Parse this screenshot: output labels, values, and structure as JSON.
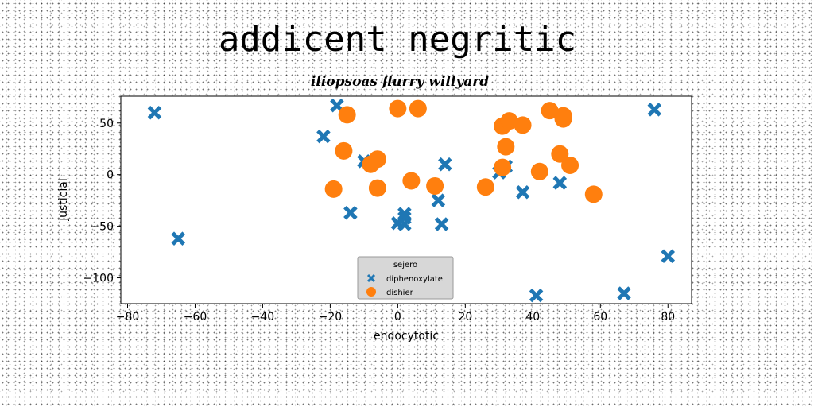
{
  "chart_data": {
    "type": "scatter",
    "title": "addicent negritic",
    "subtitle": "iliopsoas flurry willyard",
    "xlabel": "endocytotic",
    "ylabel": "justicial",
    "xlim": [
      -82,
      87
    ],
    "ylim": [
      -125,
      76
    ],
    "xticks": [
      -80,
      -60,
      -40,
      -20,
      0,
      20,
      40,
      60,
      80
    ],
    "yticks": [
      -100,
      -50,
      0,
      50
    ],
    "grid": false,
    "legend": {
      "title": "sejero",
      "position": "lower center"
    },
    "colors": {
      "diphenoxylate": "#1f77b4",
      "dishier": "#ff7f0e"
    },
    "series": [
      {
        "name": "diphenoxylate",
        "marker": "x",
        "points": [
          [
            -72,
            60
          ],
          [
            -65,
            -62
          ],
          [
            -18,
            67
          ],
          [
            -22,
            37
          ],
          [
            -14,
            -37
          ],
          [
            -10,
            13
          ],
          [
            0,
            -47
          ],
          [
            2,
            -42
          ],
          [
            2,
            -48
          ],
          [
            2,
            -38
          ],
          [
            12,
            -25
          ],
          [
            13,
            -48
          ],
          [
            14,
            10
          ],
          [
            30,
            2
          ],
          [
            32,
            8
          ],
          [
            37,
            -17
          ],
          [
            41,
            -117
          ],
          [
            48,
            -8
          ],
          [
            67,
            -115
          ],
          [
            76,
            63
          ],
          [
            80,
            -79
          ]
        ]
      },
      {
        "name": "dishier",
        "marker": "o",
        "points": [
          [
            -15,
            58
          ],
          [
            -16,
            23
          ],
          [
            -19,
            -14
          ],
          [
            -6,
            15
          ],
          [
            -8,
            10
          ],
          [
            -6,
            -13
          ],
          [
            0,
            64
          ],
          [
            6,
            64
          ],
          [
            4,
            -6
          ],
          [
            11,
            -11
          ],
          [
            26,
            -12
          ],
          [
            31,
            47
          ],
          [
            33,
            52
          ],
          [
            32,
            27
          ],
          [
            31,
            7
          ],
          [
            37,
            48
          ],
          [
            42,
            3
          ],
          [
            45,
            62
          ],
          [
            49,
            57
          ],
          [
            49,
            54
          ],
          [
            48,
            20
          ],
          [
            51,
            9
          ],
          [
            58,
            -19
          ]
        ]
      }
    ]
  }
}
